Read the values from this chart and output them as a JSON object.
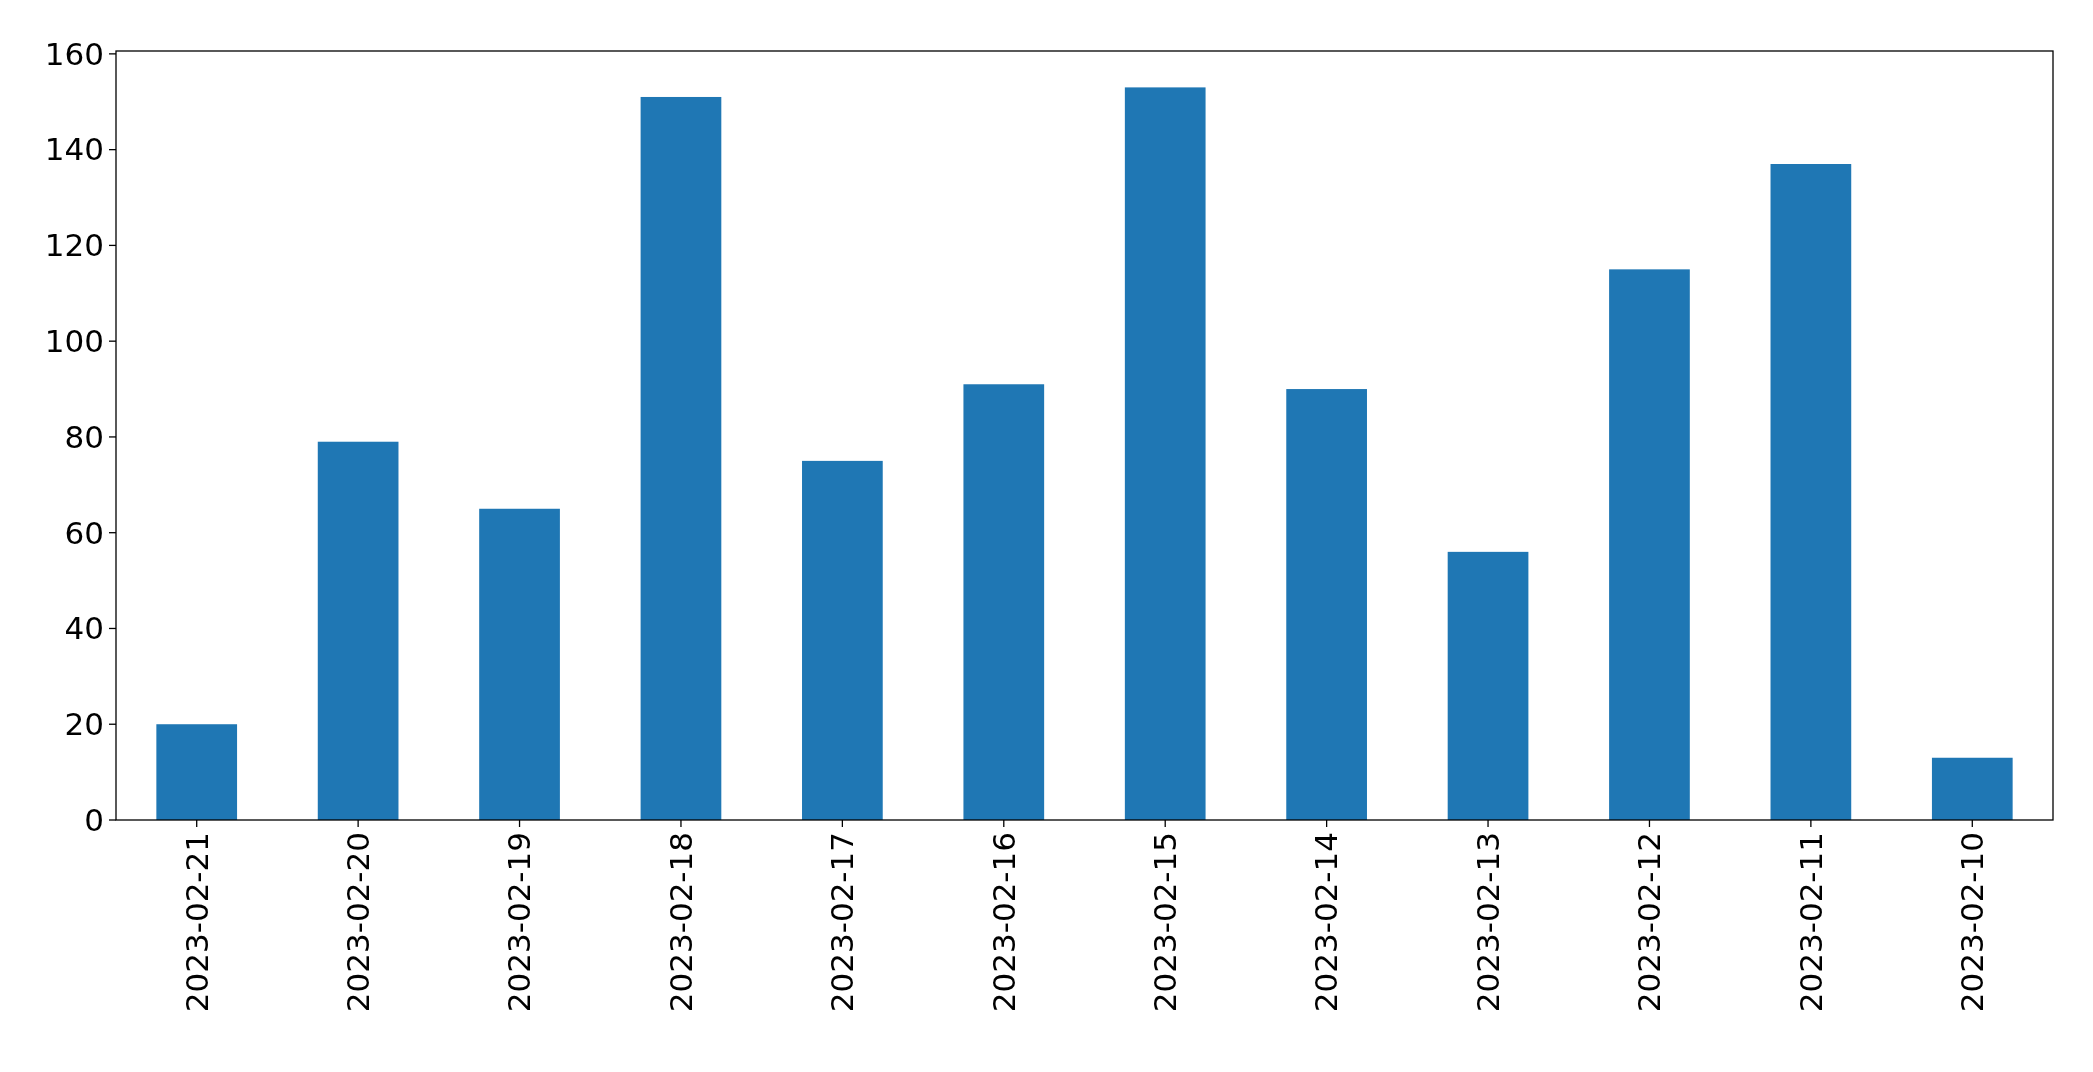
{
  "chart_data": {
    "type": "bar",
    "categories": [
      "2023-02-21",
      "2023-02-20",
      "2023-02-19",
      "2023-02-18",
      "2023-02-17",
      "2023-02-16",
      "2023-02-15",
      "2023-02-14",
      "2023-02-13",
      "2023-02-12",
      "2023-02-11",
      "2023-02-10"
    ],
    "values": [
      20,
      79,
      65,
      151,
      75,
      91,
      153,
      90,
      56,
      115,
      137,
      13
    ],
    "color": "#1f77b4",
    "ylim": [
      0,
      160.6
    ],
    "yticks": [
      0,
      20,
      40,
      60,
      80,
      100,
      120,
      140,
      160
    ],
    "grid": false
  }
}
